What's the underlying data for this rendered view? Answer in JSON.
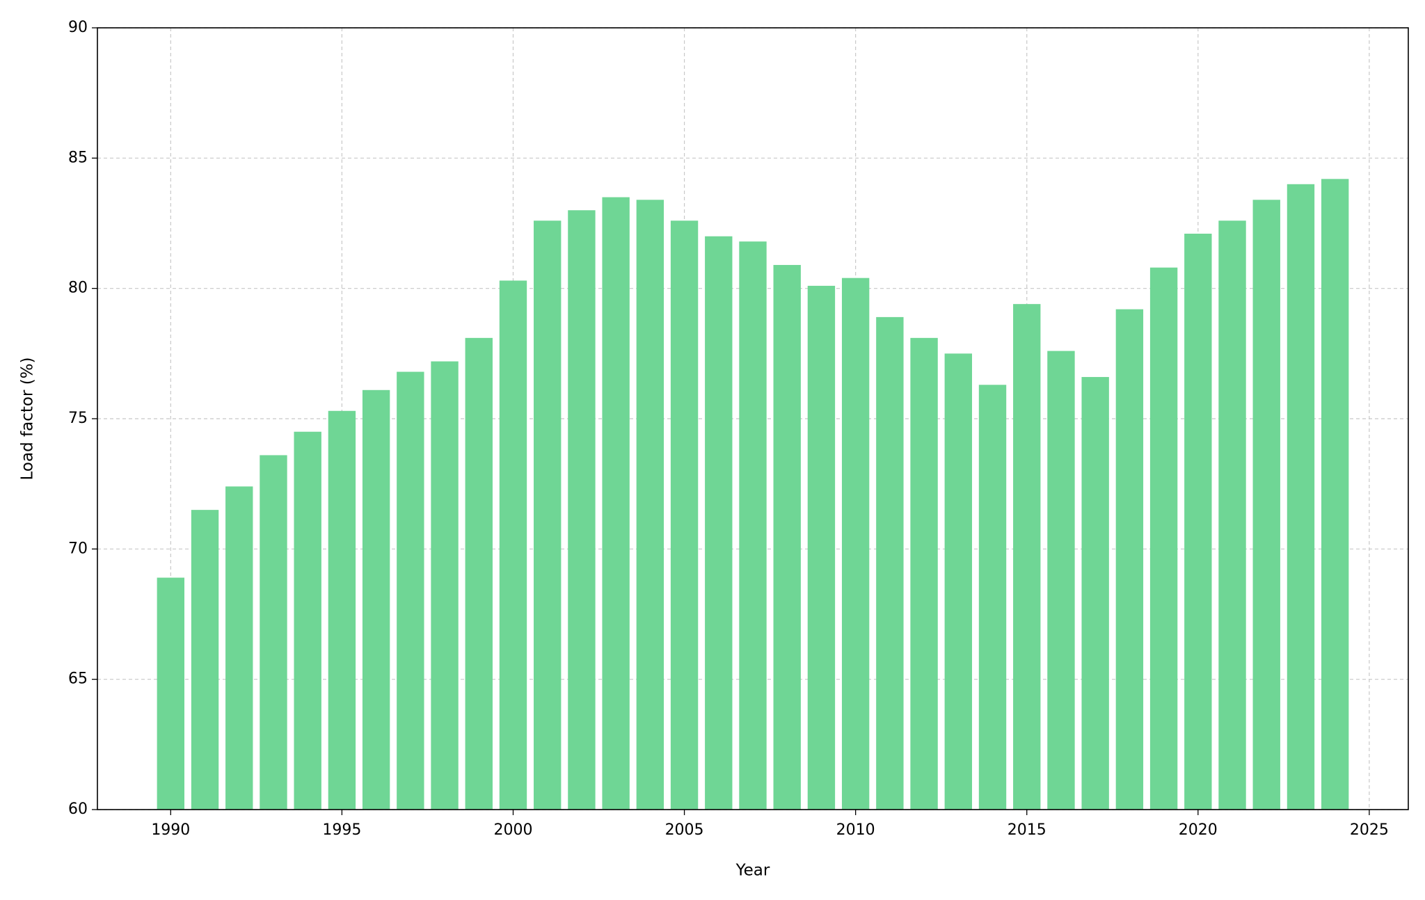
{
  "chart_data": {
    "type": "bar",
    "x_label": "Year",
    "y_label": "Load factor (%)",
    "x": [
      1990,
      1991,
      1992,
      1993,
      1994,
      1995,
      1996,
      1997,
      1998,
      1999,
      2000,
      2001,
      2002,
      2003,
      2004,
      2005,
      2006,
      2007,
      2008,
      2009,
      2010,
      2011,
      2012,
      2013,
      2014,
      2015,
      2016,
      2017,
      2018,
      2019,
      2020,
      2021,
      2022,
      2023,
      2024
    ],
    "values": [
      68.9,
      71.5,
      72.4,
      73.6,
      74.5,
      75.3,
      76.1,
      76.8,
      77.2,
      78.1,
      80.3,
      82.6,
      83.0,
      83.5,
      83.4,
      82.6,
      82.0,
      81.8,
      80.9,
      80.1,
      80.4,
      78.9,
      78.1,
      77.5,
      76.3,
      79.4,
      77.6,
      76.6,
      79.2,
      80.8,
      82.1,
      82.6,
      83.4,
      84.0,
      84.2
    ],
    "color": "#6fd695",
    "xlim": [
      1987.86,
      2026.14
    ],
    "xticks": [
      1990,
      1995,
      2000,
      2005,
      2010,
      2015,
      2020,
      2025
    ],
    "ylim": [
      60,
      90
    ],
    "yticks": [
      60,
      65,
      70,
      75,
      80,
      85,
      90
    ],
    "grid": true
  }
}
